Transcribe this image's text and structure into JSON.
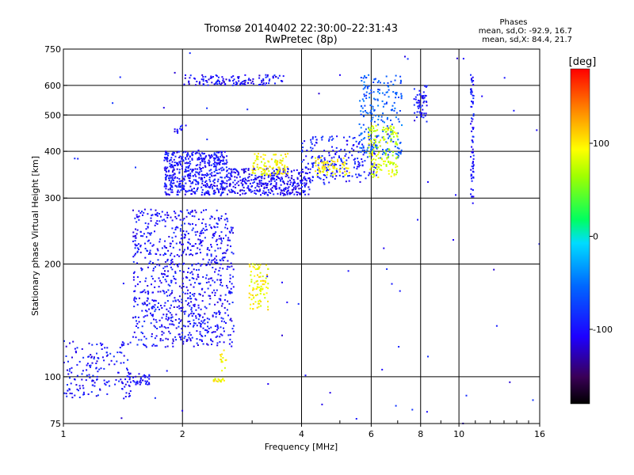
{
  "title": "Tromsø 20140402 22:30:00–22:31:43",
  "subtitle": "RwPretec (8p)",
  "stats": {
    "heading": "Phases",
    "line_o": "mean, sd,O: -92.9, 16.7",
    "line_x": "mean, sd,X:  84.4, 21.7"
  },
  "chart_data": {
    "type": "scatter",
    "xlabel": "Frequency [MHz]",
    "ylabel": "Stationary phase Virtual Height [km]",
    "xscale": "log",
    "yscale": "log",
    "xlim": [
      1,
      16
    ],
    "ylim": [
      75,
      750
    ],
    "xticks": [
      1,
      2,
      4,
      6,
      8,
      10,
      16
    ],
    "xtick_labels": [
      "1",
      "2",
      "4",
      "6",
      "8",
      "10",
      "16"
    ],
    "xgrid": [
      2,
      4,
      6,
      8,
      10
    ],
    "yticks": [
      75,
      100,
      200,
      300,
      400,
      500,
      600,
      750
    ],
    "ytick_labels": [
      "75",
      "100",
      "200",
      "300",
      "400",
      "500",
      "600",
      "750"
    ],
    "ygrid": [
      100,
      200,
      300,
      400,
      500,
      600
    ],
    "grid": true,
    "colorbar": {
      "label": "[deg]",
      "range": [
        -180,
        180
      ],
      "ticks": [
        100,
        0,
        -100
      ],
      "tick_labels": [
        "100",
        "0",
        "-100"
      ]
    },
    "clusters": [
      {
        "fx": [
          1.5,
          2.7
        ],
        "hy": [
          120,
          280
        ],
        "phase": -100,
        "n": 900
      },
      {
        "fx": [
          1.0,
          1.48
        ],
        "hy": [
          88,
          125
        ],
        "phase": -100,
        "n": 170
      },
      {
        "fx": [
          1.45,
          1.65
        ],
        "hy": [
          95,
          102
        ],
        "phase": -100,
        "n": 40
      },
      {
        "fx": [
          1.8,
          2.6
        ],
        "hy": [
          305,
          400
        ],
        "phase": -100,
        "n": 520
      },
      {
        "fx": [
          2.6,
          4.2
        ],
        "hy": [
          305,
          360
        ],
        "phase": -105,
        "n": 360
      },
      {
        "fx": [
          4.0,
          6.2
        ],
        "hy": [
          330,
          440
        ],
        "phase": -95,
        "n": 220
      },
      {
        "fx": [
          5.6,
          7.2
        ],
        "hy": [
          380,
          640
        ],
        "phase": -60,
        "n": 220
      },
      {
        "fx": [
          5.9,
          7.0
        ],
        "hy": [
          340,
          470
        ],
        "phase": 80,
        "n": 160
      },
      {
        "fx": [
          3.0,
          3.7
        ],
        "hy": [
          345,
          395
        ],
        "phase": 95,
        "n": 110
      },
      {
        "fx": [
          4.3,
          5.3
        ],
        "hy": [
          345,
          385
        ],
        "phase": 100,
        "n": 70
      },
      {
        "fx": [
          1.9,
          2.0
        ],
        "hy": [
          440,
          470
        ],
        "phase": -90,
        "n": 10
      },
      {
        "fx": [
          2.0,
          3.6
        ],
        "hy": [
          600,
          640
        ],
        "phase": -105,
        "n": 130
      },
      {
        "fx": [
          7.7,
          8.3
        ],
        "hy": [
          480,
          600
        ],
        "phase": -100,
        "n": 60
      },
      {
        "fx": [
          10.7,
          10.9
        ],
        "hy": [
          290,
          640
        ],
        "phase": -100,
        "n": 80
      },
      {
        "fx": [
          2.95,
          3.3
        ],
        "hy": [
          150,
          200
        ],
        "phase": 95,
        "n": 90
      },
      {
        "fx": [
          2.38,
          2.55
        ],
        "hy": [
          97,
          99
        ],
        "phase": 95,
        "n": 18
      },
      {
        "fx": [
          2.48,
          2.58
        ],
        "hy": [
          103,
          118
        ],
        "phase": 95,
        "n": 14
      },
      {
        "fx": [
          1.0,
          16
        ],
        "hy": [
          75,
          750
        ],
        "phase": -100,
        "n": 75
      }
    ]
  }
}
